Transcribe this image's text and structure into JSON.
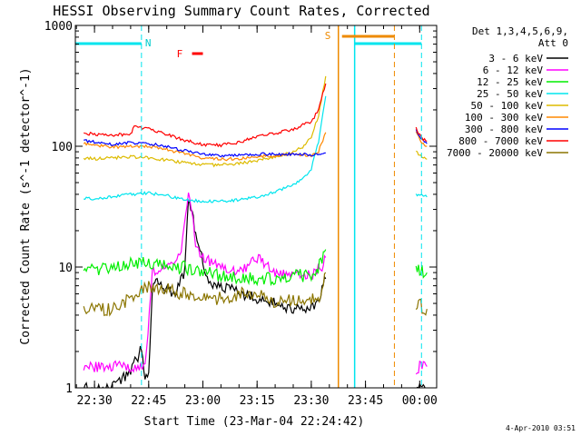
{
  "chart_data": {
    "type": "line",
    "title": "HESSI Observing Summary Count Rates, Corrected",
    "xlabel": "Start Time (23-Mar-04 22:24:42)",
    "ylabel": "Corrected Count Rate (s^-1 detector^-1)",
    "yscale": "log",
    "ylim": [
      1,
      1000
    ],
    "xlim": [
      "22:24:42",
      "00:04:42"
    ],
    "x_ticks": [
      "22:30",
      "22:45",
      "23:00",
      "23:15",
      "23:30",
      "23:45",
      "00:00"
    ],
    "y_ticks": [
      "1",
      "10",
      "100",
      "1000"
    ],
    "legend_title": [
      "Det 1,3,4,5,6,9,",
      "Att 0"
    ],
    "legend_position": "right",
    "date_stamp": "4-Apr-2010 03:51",
    "annotations": {
      "night_label": "N",
      "saa_label": "S",
      "flare_label": "F"
    },
    "series": [
      {
        "name": "3 - 6 keV",
        "color": "#000000",
        "x": [
          "22:27",
          "22:30",
          "22:35",
          "22:40",
          "22:42",
          "22:43",
          "22:44",
          "22:45",
          "22:46",
          "22:47",
          "22:48",
          "22:52",
          "22:55",
          "22:56",
          "22:57",
          "22:58",
          "23:00",
          "23:02",
          "23:05",
          "23:08",
          "23:10",
          "23:15",
          "23:20",
          "23:25",
          "23:30",
          "23:32",
          "23:33",
          "23:34"
        ],
        "y": [
          1,
          1,
          1,
          1.4,
          1.8,
          2.2,
          1.2,
          1.3,
          6,
          8,
          7,
          6,
          9,
          35,
          30,
          18,
          11,
          7,
          7,
          6.5,
          6,
          5.5,
          5,
          4.5,
          4.5,
          5,
          7,
          8
        ]
      },
      {
        "name": "6 - 12 keV",
        "color": "#ff00ff",
        "x": [
          "22:27",
          "22:30",
          "22:35",
          "22:40",
          "22:42",
          "22:44",
          "22:46",
          "22:50",
          "22:52",
          "22:54",
          "22:56",
          "22:57",
          "22:58",
          "23:00",
          "23:05",
          "23:10",
          "23:15",
          "23:20",
          "23:25",
          "23:30",
          "23:33",
          "23:34"
        ],
        "y": [
          1.5,
          1.5,
          1.5,
          1.5,
          1.5,
          1.5,
          9,
          10,
          11,
          13,
          45,
          28,
          15,
          12,
          10,
          9,
          12,
          9,
          8.5,
          8.5,
          10,
          12
        ]
      },
      {
        "name": "12 - 25 keV",
        "color": "#00ee00",
        "x": [
          "22:27",
          "22:30",
          "22:35",
          "22:40",
          "22:45",
          "22:50",
          "22:55",
          "23:00",
          "23:05",
          "23:10",
          "23:15",
          "23:20",
          "23:25",
          "23:30",
          "23:33",
          "23:34"
        ],
        "y": [
          10,
          9.5,
          10,
          10.5,
          11,
          10,
          10,
          9,
          8.5,
          8,
          8,
          8,
          8.5,
          8.5,
          11,
          14
        ]
      },
      {
        "name": "25 - 50 keV",
        "color": "#00e5ee",
        "x": [
          "22:27",
          "22:30",
          "22:35",
          "22:40",
          "22:45",
          "22:50",
          "22:55",
          "23:00",
          "23:05",
          "23:10",
          "23:15",
          "23:20",
          "23:25",
          "23:28",
          "23:30",
          "23:32",
          "23:34"
        ],
        "y": [
          37,
          37,
          38,
          40,
          41,
          39,
          36,
          35,
          35,
          36,
          38,
          42,
          48,
          55,
          65,
          110,
          260
        ]
      },
      {
        "name": "50 - 100 keV",
        "color": "#ddbb00",
        "x": [
          "22:27",
          "22:30",
          "22:35",
          "22:40",
          "22:45",
          "22:50",
          "22:55",
          "23:00",
          "23:05",
          "23:10",
          "23:15",
          "23:20",
          "23:25",
          "23:28",
          "23:30",
          "23:32",
          "23:34"
        ],
        "y": [
          80,
          79,
          80,
          82,
          80,
          77,
          73,
          70,
          70,
          72,
          76,
          82,
          90,
          100,
          120,
          180,
          380
        ]
      },
      {
        "name": "100 - 300 keV",
        "color": "#ff8800",
        "x": [
          "22:27",
          "22:30",
          "22:35",
          "22:40",
          "22:45",
          "22:50",
          "22:55",
          "23:00",
          "23:05",
          "23:10",
          "23:15",
          "23:20",
          "23:25",
          "23:30",
          "23:32",
          "23:34"
        ],
        "y": [
          105,
          102,
          98,
          100,
          100,
          94,
          86,
          80,
          78,
          79,
          82,
          84,
          86,
          84,
          90,
          130
        ]
      },
      {
        "name": "300 - 800 keV",
        "color": "#0000ff",
        "x": [
          "22:27",
          "22:30",
          "22:35",
          "22:40",
          "22:45",
          "22:50",
          "22:55",
          "23:00",
          "23:05",
          "23:10",
          "23:15",
          "23:20",
          "23:25",
          "23:30",
          "23:34"
        ],
        "y": [
          112,
          108,
          104,
          107,
          105,
          100,
          92,
          86,
          84,
          84,
          86,
          86,
          86,
          85,
          88
        ]
      },
      {
        "name": "800 - 7000 keV",
        "color": "#ff0000",
        "x": [
          "22:27",
          "22:30",
          "22:35",
          "22:40",
          "22:41",
          "22:45",
          "22:50",
          "22:55",
          "23:00",
          "23:05",
          "23:10",
          "23:15",
          "23:20",
          "23:25",
          "23:30",
          "23:32",
          "23:34"
        ],
        "y": [
          128,
          126,
          124,
          126,
          145,
          140,
          125,
          112,
          103,
          102,
          108,
          120,
          128,
          138,
          160,
          200,
          330
        ]
      },
      {
        "name": "7000 - 20000 keV",
        "color": "#8b7500",
        "x": [
          "22:27",
          "22:30",
          "22:35",
          "22:40",
          "22:45",
          "22:50",
          "22:55",
          "23:00",
          "23:05",
          "23:10",
          "23:15",
          "23:20",
          "23:25",
          "23:30",
          "23:33",
          "23:34"
        ],
        "y": [
          4.5,
          4.5,
          4.5,
          5.5,
          7,
          6.5,
          6,
          5.5,
          5.5,
          6,
          6,
          5,
          5.5,
          5.5,
          6,
          9
        ]
      }
    ],
    "after_gap": {
      "x": [
        "23:59",
        "00:00",
        "00:01",
        "00:02"
      ],
      "series_y": {
        "3 - 6 keV": [
          1,
          1,
          1,
          1
        ],
        "6 - 12 keV": [
          1.3,
          1.5,
          1.5,
          1.5
        ],
        "12 - 25 keV": [
          10,
          9.5,
          9,
          9
        ],
        "25 - 50 keV": [
          40,
          40,
          39,
          38
        ],
        "50 - 100 keV": [
          90,
          85,
          80,
          78
        ],
        "100 - 300 keV": [
          130,
          115,
          105,
          100
        ],
        "300 - 800 keV": [
          135,
          120,
          110,
          105
        ],
        "800 - 7000 keV": [
          140,
          125,
          115,
          110
        ],
        "7000 - 20000 keV": [
          5,
          5,
          4.5,
          4.5
        ]
      }
    }
  }
}
